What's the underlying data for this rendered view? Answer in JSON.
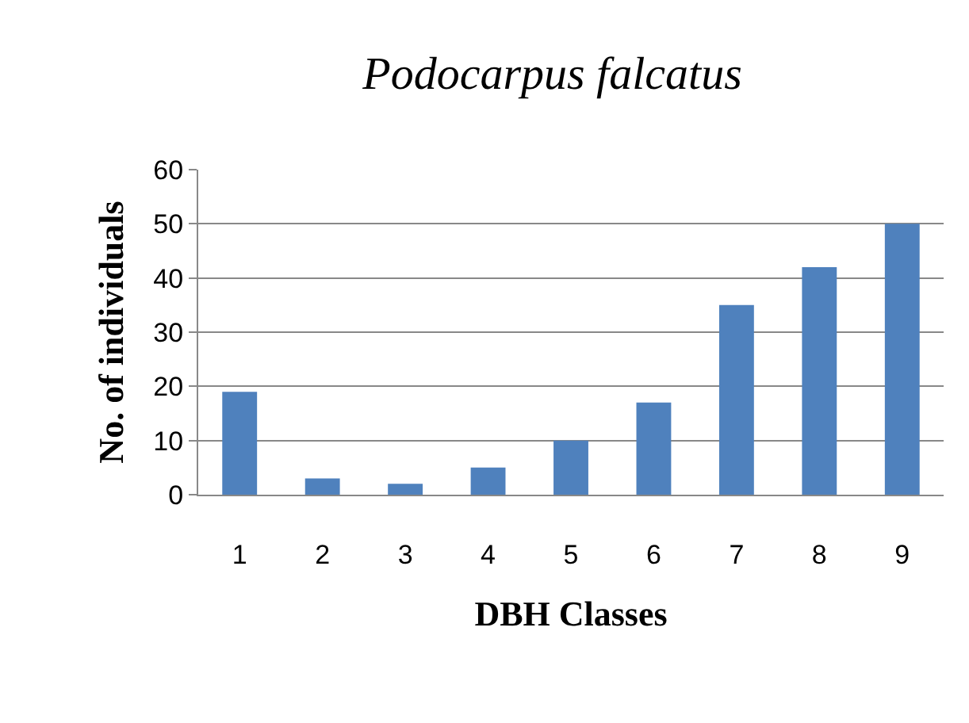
{
  "chart_data": {
    "type": "bar",
    "title": "Podocarpus falcatus",
    "xlabel": "DBH Classes",
    "ylabel": "No. of individuals",
    "categories": [
      "1",
      "2",
      "3",
      "4",
      "5",
      "6",
      "7",
      "8",
      "9"
    ],
    "values": [
      19,
      3,
      2,
      5,
      10,
      17,
      35,
      42,
      50
    ],
    "color": "#4f81bd",
    "ylim": [
      0,
      60
    ],
    "yticks": [
      0,
      10,
      20,
      30,
      40,
      50,
      60
    ],
    "grid": "y"
  }
}
